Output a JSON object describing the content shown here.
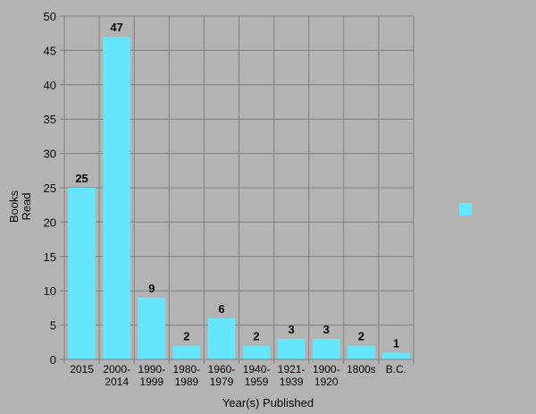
{
  "chart_data": {
    "type": "bar",
    "title": "",
    "xlabel": "Year(s) Published",
    "ylabel": "Books Read",
    "ylabel_lines": [
      "Books",
      "Read"
    ],
    "categories": [
      [
        "2015"
      ],
      [
        "2000-",
        "2014"
      ],
      [
        "1990-",
        "1999"
      ],
      [
        "1980-",
        "1989"
      ],
      [
        "1960-",
        "1979"
      ],
      [
        "1940-",
        "1959"
      ],
      [
        "1921-",
        "1939"
      ],
      [
        "1900-",
        "1920"
      ],
      [
        "1800s"
      ],
      [
        "B.C."
      ]
    ],
    "series": [
      {
        "values": [
          25,
          47,
          9,
          2,
          6,
          2,
          3,
          3,
          2,
          1
        ]
      }
    ],
    "data_labels": [
      "25",
      "47",
      "9",
      "2",
      "6",
      "2",
      "3",
      "3",
      "2",
      "1"
    ],
    "ylim": [
      0,
      50
    ],
    "yticks": [
      0,
      5,
      10,
      15,
      20,
      25,
      30,
      35,
      40,
      45,
      50
    ],
    "grid": true,
    "legend": {
      "placement": "right",
      "entries": [
        ""
      ]
    },
    "colors": {
      "bar": "#66e5ff",
      "background": "#b3b3b3",
      "grid": "#808080",
      "text": "#000000"
    }
  }
}
